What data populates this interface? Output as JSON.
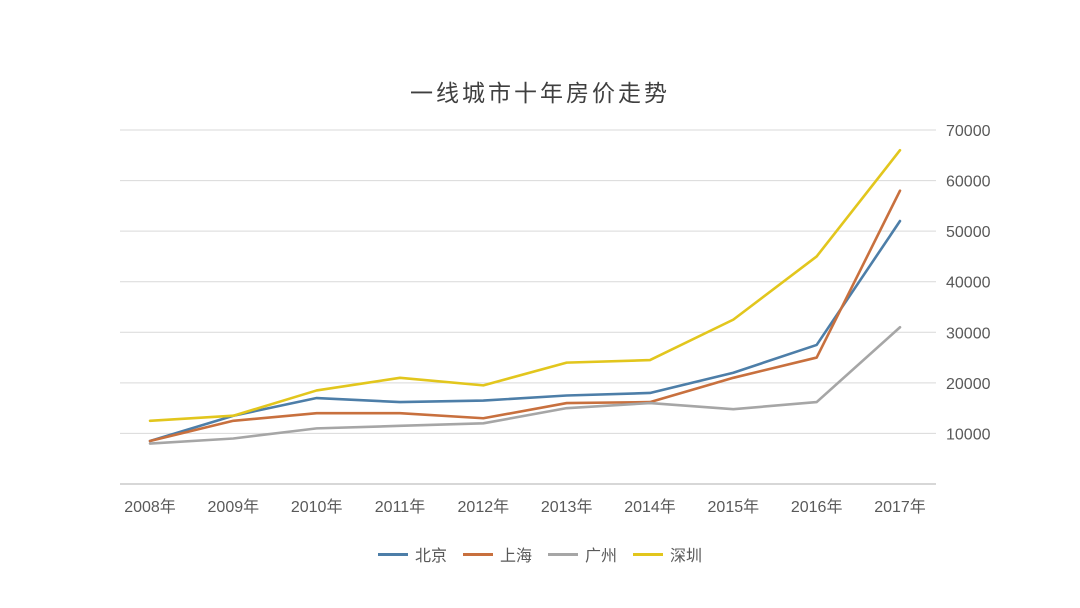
{
  "page": {
    "background": "#ffffff"
  },
  "chart_data": {
    "type": "line",
    "title": "一线城市十年房价走势",
    "xlabel": "",
    "ylabel": "",
    "categories": [
      "2008年",
      "2009年",
      "2010年",
      "2011年",
      "2012年",
      "2013年",
      "2014年",
      "2015年",
      "2016年",
      "2017年"
    ],
    "series": [
      {
        "id": "beijing",
        "name": "北京",
        "color": "#4d7ea8",
        "values": [
          8500,
          13500,
          17000,
          16200,
          16500,
          17500,
          18000,
          22000,
          27500,
          52000
        ]
      },
      {
        "id": "shanghai",
        "name": "上海",
        "color": "#c8703e",
        "values": [
          8500,
          12500,
          14000,
          14000,
          13000,
          16000,
          16200,
          21000,
          25000,
          58000
        ]
      },
      {
        "id": "guangzhou",
        "name": "广州",
        "color": "#a6a6a6",
        "values": [
          8000,
          9000,
          11000,
          11500,
          12000,
          15000,
          16000,
          14800,
          16200,
          31000
        ]
      },
      {
        "id": "shenzhen",
        "name": "深圳",
        "color": "#e2c61d",
        "values": [
          12500,
          13500,
          18500,
          21000,
          19500,
          24000,
          24500,
          32500,
          45000,
          66000
        ]
      }
    ],
    "ylim": [
      0,
      70000
    ],
    "ytick_step": 10000,
    "ytick_labels": [
      "10000",
      "20000",
      "30000",
      "40000",
      "50000",
      "60000",
      "70000"
    ],
    "ytick_side": "right",
    "grid": "horizontal",
    "legend_position": "bottom"
  },
  "style": {
    "grid_color": "#d9d9d9",
    "axis_color": "#bfbfbf",
    "label_color": "#595959",
    "title_color": "#3f3f3f",
    "line_width": 2.6
  }
}
